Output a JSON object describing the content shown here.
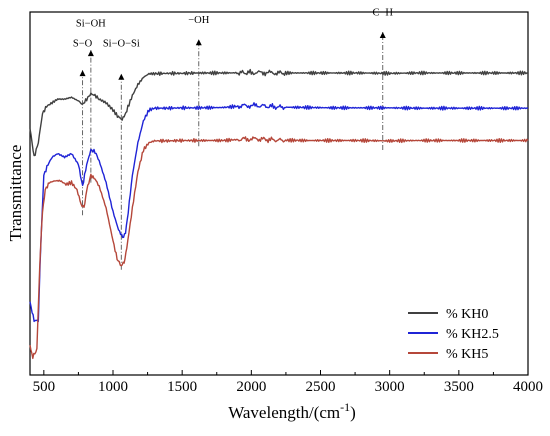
{
  "chart_data": {
    "type": "line",
    "title": "",
    "xlabel": "Wavelength/(cm",
    "xlabel_sup": "-1",
    "xlabel_close": ")",
    "ylabel": "Transmittance",
    "xlim": [
      400,
      4000
    ],
    "ylim": [
      0,
      1
    ],
    "x_ticks": [
      "500",
      "1000",
      "1500",
      "2000",
      "2500",
      "3000",
      "3500",
      "4000"
    ],
    "x_tick_values": [
      500,
      1000,
      1500,
      2000,
      2500,
      3000,
      3500,
      4000
    ],
    "y_ticks_labeled": false,
    "grid": false,
    "legend_position": "bottom-right",
    "series": [
      {
        "name": "% KH0",
        "color": "#404040",
        "x": [
          400,
          430,
          460,
          490,
          520,
          560,
          600,
          650,
          700,
          750,
          780,
          810,
          840,
          870,
          900,
          950,
          1000,
          1040,
          1060,
          1080,
          1100,
          1140,
          1180,
          1220,
          1260,
          1300,
          1400,
          1500,
          1600,
          1800,
          2000,
          2100,
          2200,
          2400,
          2600,
          2800,
          3000,
          3200,
          3400,
          3600,
          3800,
          4000
        ],
        "y": [
          0.68,
          0.6,
          0.64,
          0.72,
          0.74,
          0.75,
          0.76,
          0.76,
          0.765,
          0.755,
          0.745,
          0.76,
          0.775,
          0.77,
          0.76,
          0.75,
          0.73,
          0.71,
          0.705,
          0.71,
          0.73,
          0.77,
          0.8,
          0.82,
          0.83,
          0.83,
          0.831,
          0.831,
          0.832,
          0.832,
          0.833,
          0.833,
          0.832,
          0.832,
          0.832,
          0.832,
          0.831,
          0.832,
          0.832,
          0.832,
          0.832,
          0.832
        ]
      },
      {
        "name": "% KH2.5",
        "color": "#1f24d6",
        "x": [
          400,
          430,
          460,
          480,
          500,
          530,
          560,
          600,
          650,
          700,
          750,
          780,
          810,
          840,
          870,
          900,
          950,
          1000,
          1040,
          1070,
          1090,
          1110,
          1140,
          1180,
          1220,
          1260,
          1300,
          1400,
          1500,
          1600,
          1800,
          1950,
          2050,
          2200,
          2400,
          2600,
          2800,
          3000,
          3200,
          3400,
          3600,
          3800,
          4000
        ],
        "y": [
          0.2,
          0.15,
          0.15,
          0.38,
          0.55,
          0.58,
          0.6,
          0.61,
          0.6,
          0.61,
          0.58,
          0.52,
          0.58,
          0.62,
          0.615,
          0.59,
          0.53,
          0.45,
          0.4,
          0.38,
          0.39,
          0.45,
          0.55,
          0.64,
          0.7,
          0.73,
          0.735,
          0.735,
          0.736,
          0.736,
          0.737,
          0.742,
          0.742,
          0.738,
          0.737,
          0.736,
          0.736,
          0.736,
          0.735,
          0.735,
          0.735,
          0.735,
          0.735
        ]
      },
      {
        "name": "% KH5",
        "color": "#b5473a",
        "x": [
          400,
          420,
          450,
          470,
          490,
          510,
          540,
          580,
          620,
          660,
          700,
          740,
          770,
          790,
          810,
          840,
          870,
          900,
          950,
          1000,
          1030,
          1060,
          1080,
          1100,
          1140,
          1180,
          1220,
          1260,
          1300,
          1400,
          1500,
          1600,
          1800,
          1950,
          2050,
          2200,
          2400,
          2600,
          2800,
          3000,
          3200,
          3400,
          3600,
          3800,
          4000
        ],
        "y": [
          0.08,
          0.05,
          0.07,
          0.3,
          0.45,
          0.51,
          0.53,
          0.535,
          0.535,
          0.525,
          0.53,
          0.51,
          0.47,
          0.46,
          0.51,
          0.55,
          0.54,
          0.52,
          0.46,
          0.37,
          0.32,
          0.3,
          0.31,
          0.35,
          0.46,
          0.56,
          0.62,
          0.64,
          0.645,
          0.645,
          0.646,
          0.646,
          0.646,
          0.65,
          0.65,
          0.647,
          0.646,
          0.646,
          0.646,
          0.645,
          0.646,
          0.646,
          0.646,
          0.646,
          0.646
        ]
      }
    ],
    "annotations": [
      {
        "label": "S−O",
        "x": 780,
        "y": 0.905
      },
      {
        "label": "Si−OH",
        "x": 840,
        "y": 0.96
      },
      {
        "label": "Si−O−Si",
        "x": 1060,
        "y": 0.905
      },
      {
        "label": "−OH",
        "x": 1620,
        "y": 0.97
      },
      {
        "label": "C−H",
        "x": 2950,
        "y": 0.99
      }
    ],
    "guides": [
      {
        "x": 780,
        "y_from": 0.44,
        "y_to": 0.84
      },
      {
        "x": 840,
        "y_from": 0.53,
        "y_to": 0.895
      },
      {
        "x": 1060,
        "y_from": 0.29,
        "y_to": 0.83
      },
      {
        "x": 1620,
        "y_from": 0.63,
        "y_to": 0.925
      },
      {
        "x": 2950,
        "y_from": 0.62,
        "y_to": 0.945
      }
    ]
  }
}
